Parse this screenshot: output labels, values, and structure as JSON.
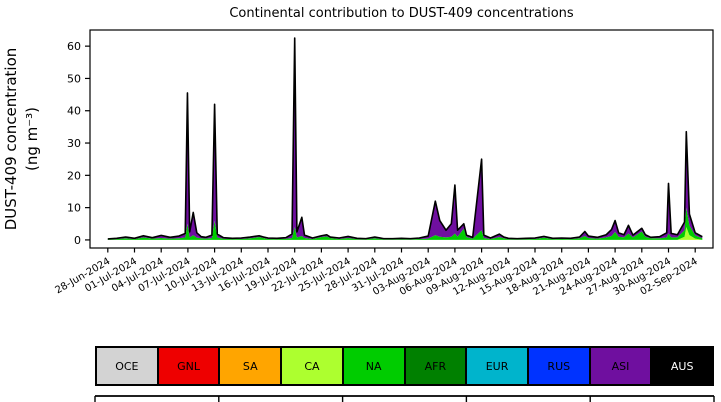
{
  "chart_data": {
    "type": "area",
    "stacked": true,
    "title": "Continental contribution to DUST-409 concentrations",
    "ylabel_line1": "DUST-409 concentration",
    "ylabel_line2": "(ng m⁻³)",
    "xlabel": "",
    "x_unit": "days since 28-Jun-2024",
    "xlim": [
      -2,
      68
    ],
    "ylim": [
      -2.5,
      65
    ],
    "yticks": [
      0,
      10,
      20,
      30,
      40,
      50,
      60
    ],
    "xtick_days": [
      0,
      3,
      6,
      9,
      12,
      15,
      18,
      21,
      24,
      27,
      30,
      33,
      36,
      39,
      42,
      45,
      48,
      51,
      54,
      57,
      60,
      63,
      66
    ],
    "xtick_labels": [
      "28-Jun-2024",
      "01-Jul-2024",
      "04-Jul-2024",
      "07-Jul-2024",
      "10-Jul-2024",
      "13-Jul-2024",
      "16-Jul-2024",
      "19-Jul-2024",
      "22-Jul-2024",
      "25-Jul-2024",
      "28-Jul-2024",
      "31-Jul-2024",
      "03-Aug-2024",
      "06-Aug-2024",
      "09-Aug-2024",
      "12-Aug-2024",
      "15-Aug-2024",
      "18-Aug-2024",
      "21-Aug-2024",
      "24-Aug-2024",
      "27-Aug-2024",
      "30-Aug-2024",
      "02-Sep-2024"
    ],
    "total_line_color": "#000000",
    "x": [
      0,
      1,
      2,
      3,
      4,
      5,
      6,
      7,
      8,
      8.7,
      8.95,
      9.2,
      9.6,
      10,
      10.5,
      11,
      11.7,
      12,
      12.3,
      13,
      14,
      15,
      16,
      17,
      17.5,
      18,
      19,
      20,
      20.7,
      21,
      21.25,
      21.8,
      22.1,
      23,
      24,
      24.6,
      25,
      26,
      27,
      28,
      29,
      30,
      31,
      32,
      33,
      34,
      35,
      36,
      36.8,
      37.3,
      38,
      38.6,
      39,
      39.3,
      40,
      40.3,
      41,
      42,
      42.25,
      43,
      44,
      44.5,
      45,
      46,
      47,
      48,
      49,
      50,
      51,
      52,
      53,
      53.6,
      54,
      55,
      56,
      56.6,
      57,
      57.4,
      58,
      58.5,
      59,
      60,
      60.4,
      61,
      62,
      62.8,
      63,
      63.3,
      64,
      64.8,
      65,
      65.35,
      66,
      66.8
    ],
    "series": [
      {
        "name": "OCE",
        "color": "#d3d3d3",
        "text_color": "#000000",
        "values": []
      },
      {
        "name": "GNL",
        "color": "#ee0000",
        "text_color": "#000000",
        "values": []
      },
      {
        "name": "SA",
        "color": "#ffa500",
        "text_color": "#000000",
        "values": []
      },
      {
        "name": "CA",
        "color": "#adff2f",
        "text_color": "#000000",
        "values": [
          0,
          0,
          0,
          0,
          0,
          0,
          0,
          0,
          0,
          0,
          0,
          0,
          0,
          0,
          0,
          0,
          0,
          0,
          0,
          0,
          0,
          0,
          0,
          0,
          0,
          0,
          0,
          0,
          0,
          0,
          0,
          0,
          0,
          0,
          0,
          0,
          0,
          0,
          0,
          0,
          0,
          0,
          0,
          0,
          0,
          0,
          0,
          0,
          0,
          0,
          0,
          0,
          0,
          0,
          0,
          0,
          0,
          0,
          0,
          0,
          0,
          0,
          0,
          0,
          0,
          0,
          0,
          0,
          0,
          0,
          0,
          0,
          0,
          0,
          0,
          0,
          0,
          0,
          0,
          0,
          0,
          0,
          0,
          0,
          0,
          0,
          0,
          0,
          0,
          1.0,
          4.0,
          1.5,
          0.4,
          0
        ]
      },
      {
        "name": "NA",
        "color": "#00cc00",
        "text_color": "#000000",
        "values": [
          0.15,
          0.25,
          0.5,
          0.25,
          0.8,
          0.4,
          0.6,
          0.4,
          0.5,
          0.8,
          5,
          0.8,
          1.5,
          0.7,
          0.5,
          0.4,
          0.6,
          6,
          0.8,
          0.35,
          0.25,
          0.3,
          0.5,
          0.9,
          0.6,
          0.3,
          0.25,
          0.35,
          0.6,
          4,
          0.8,
          1.2,
          0.6,
          0.3,
          0.9,
          1.1,
          0.6,
          0.3,
          0.6,
          0.25,
          0.2,
          0.5,
          0.2,
          0.2,
          0.25,
          0.2,
          0.3,
          0.4,
          1.5,
          1.0,
          0.8,
          1.0,
          2.0,
          1.0,
          3.5,
          0.9,
          0.4,
          3.0,
          0.6,
          0.3,
          0.9,
          0.5,
          0.25,
          0.2,
          0.25,
          0.3,
          0.7,
          0.25,
          0.3,
          0.25,
          0.5,
          1.2,
          0.6,
          0.4,
          0.8,
          1.2,
          2.5,
          1.0,
          0.8,
          2.0,
          0.8,
          2.6,
          1.0,
          0.5,
          0.5,
          0.8,
          2.0,
          0.8,
          0.8,
          2.0,
          6.0,
          3.0,
          1.0,
          0.5
        ]
      },
      {
        "name": "AFR",
        "color": "#008000",
        "text_color": "#000000",
        "values": []
      },
      {
        "name": "EUR",
        "color": "#00b4cc",
        "text_color": "#000000",
        "values": []
      },
      {
        "name": "RUS",
        "color": "#0033ff",
        "text_color": "#000000",
        "values": []
      },
      {
        "name": "ASI",
        "color": "#6f0f9f",
        "text_color": "#000000",
        "values": [
          0.15,
          0.25,
          0.4,
          0.25,
          0.5,
          0.3,
          0.8,
          0.4,
          0.7,
          1.2,
          40.5,
          1.7,
          7.0,
          1.5,
          0.5,
          0.4,
          0.9,
          36.0,
          1.0,
          0.35,
          0.25,
          0.3,
          0.4,
          0.4,
          0.3,
          0.3,
          0.25,
          0.35,
          1.2,
          58.5,
          1.7,
          5.8,
          0.9,
          0.3,
          0.4,
          0.5,
          0.3,
          0.3,
          0.5,
          0.25,
          0.2,
          0.4,
          0.2,
          0.2,
          0.25,
          0.2,
          0.3,
          0.8,
          10.5,
          5.0,
          2.2,
          4.0,
          15.0,
          2.0,
          1.5,
          0.6,
          0.4,
          22.0,
          0.9,
          0.3,
          0.9,
          0.4,
          0.25,
          0.2,
          0.25,
          0.3,
          0.4,
          0.25,
          0.3,
          0.25,
          0.4,
          1.4,
          0.6,
          0.4,
          0.8,
          2.0,
          3.5,
          1.2,
          0.8,
          2.5,
          0.7,
          1.0,
          0.6,
          0.3,
          0.5,
          1.4,
          15.5,
          1.2,
          0.8,
          2.5,
          23.5,
          3.5,
          0.8,
          0.5
        ]
      },
      {
        "name": "AUS",
        "color": "#000000",
        "text_color": "#ffffff",
        "values": []
      }
    ]
  }
}
